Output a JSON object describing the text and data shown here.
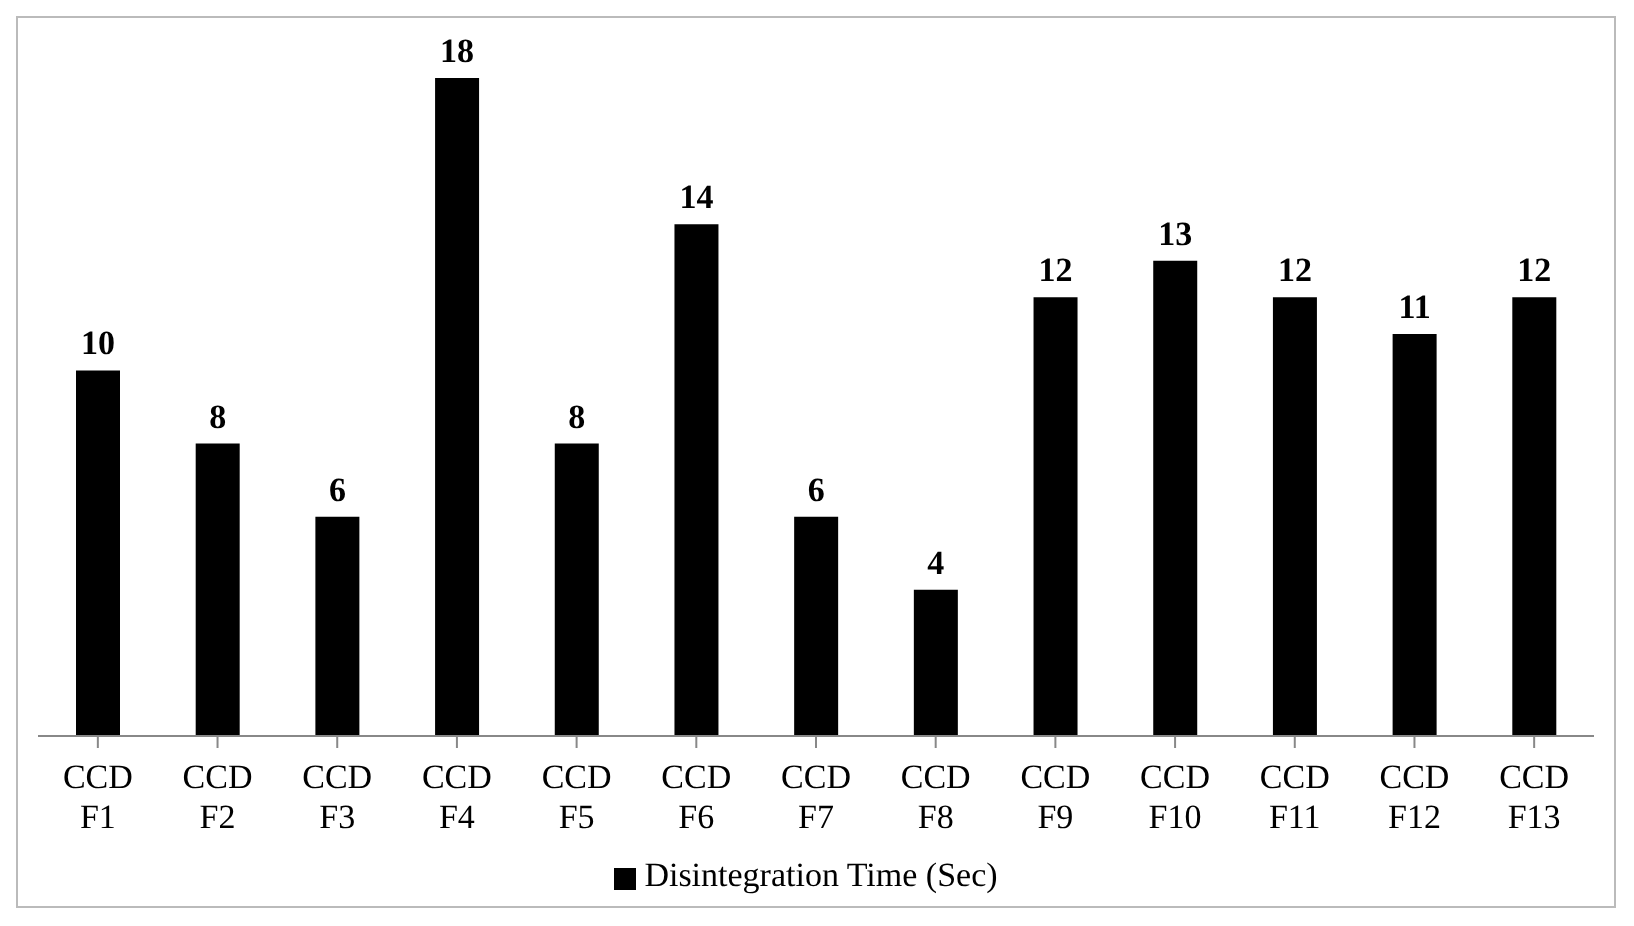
{
  "chart_data": {
    "type": "bar",
    "categories": [
      "CCD F1",
      "CCD F2",
      "CCD F3",
      "CCD F4",
      "CCD F5",
      "CCD F6",
      "CCD F7",
      "CCD F8",
      "CCD F9",
      "CCD F10",
      "CCD F11",
      "CCD F12",
      "CCD F13"
    ],
    "series": [
      {
        "name": "Disintegration Time (Sec)",
        "color": "#000000",
        "values": [
          10,
          8,
          6,
          18,
          8,
          14,
          6,
          4,
          12,
          13,
          12,
          11,
          12
        ]
      }
    ],
    "data_labels": true,
    "legend": "bottom",
    "grid": false
  }
}
